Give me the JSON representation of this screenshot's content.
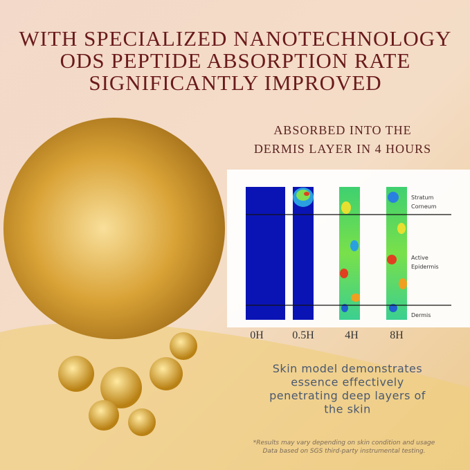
{
  "headline": {
    "lines": [
      "WITH SPECIALIZED NANOTECHNOLOGY",
      "ODS PEPTIDE ABSORPTION RATE",
      "SIGNIFICANTLY IMPROVED"
    ]
  },
  "subheading": {
    "lines": [
      "ABSORBED INTO THE",
      "DERMIS LAYER IN 4 HOURS"
    ]
  },
  "diagram": {
    "time_labels": [
      "0H",
      "0.5H",
      "4H",
      "8H"
    ],
    "layer_labels": [
      [
        "Stratum",
        "Corneum"
      ],
      [
        "Active",
        "Epidermis"
      ],
      [
        "Dermis"
      ]
    ]
  },
  "description": {
    "lines": [
      "Skin model demonstrates",
      "essence effectively",
      "penetrating deep layers of",
      "the skin"
    ]
  },
  "footnote": {
    "lines": [
      "*Results may vary depending on skin condition and usage",
      "Data based on SGS third-party instrumental testing."
    ]
  }
}
